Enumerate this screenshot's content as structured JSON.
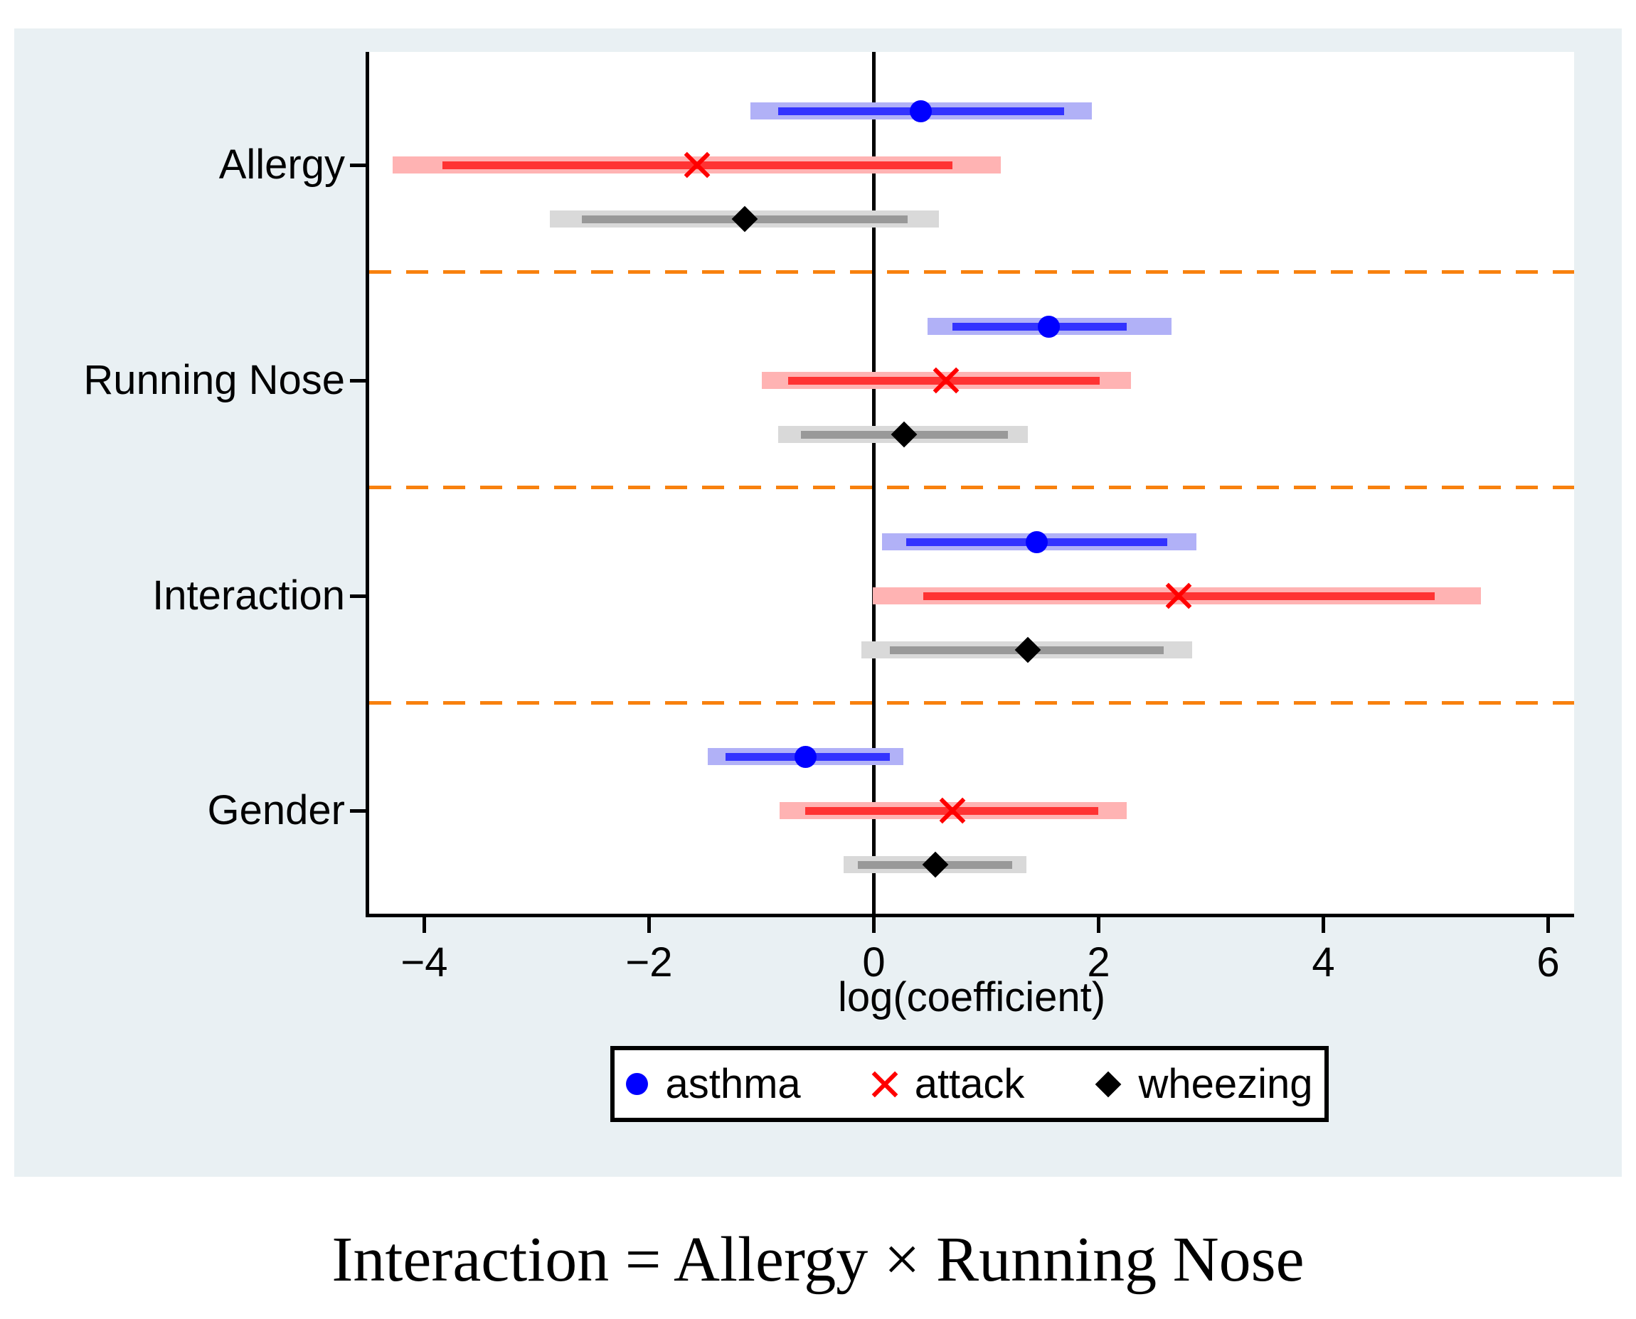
{
  "caption": "Interaction = Allergy × Running Nose",
  "chart_data": {
    "type": "scatter",
    "subtype": "coefficient-forest-plot-with-confidence-intervals",
    "title": "",
    "xlabel": "log(coefficient)",
    "ylabel": "",
    "x_tick_labels": [
      "−4",
      "−2",
      "0",
      "2",
      "4",
      "6"
    ],
    "x_tick_values": [
      -4,
      -2,
      0,
      2,
      4,
      6
    ],
    "xlim": [
      -4.5,
      6.23
    ],
    "grid": false,
    "zero_reference_line": 0,
    "category_separators": "dashed-orange-between-groups",
    "legend_position": "bottom-center",
    "categories": [
      "Allergy",
      "Running Nose",
      "Interaction",
      "Gender"
    ],
    "series": [
      {
        "name": "asthma",
        "marker": "circle",
        "points": [
          0.42,
          1.56,
          1.45,
          -0.61
        ],
        "ci_inner": [
          [
            -0.85,
            1.69
          ],
          [
            0.7,
            2.25
          ],
          [
            0.29,
            2.61
          ],
          [
            -1.32,
            0.14
          ]
        ],
        "ci_outer": [
          [
            -1.1,
            1.94
          ],
          [
            0.48,
            2.65
          ],
          [
            0.07,
            2.87
          ],
          [
            -1.48,
            0.26
          ]
        ]
      },
      {
        "name": "attack",
        "marker": "x",
        "points": [
          -1.57,
          0.64,
          2.71,
          0.7
        ],
        "ci_inner": [
          [
            -3.84,
            0.7
          ],
          [
            -0.76,
            2.01
          ],
          [
            0.44,
            4.99
          ],
          [
            -0.61,
            2.0
          ]
        ],
        "ci_outer": [
          [
            -4.28,
            1.13
          ],
          [
            -1.0,
            2.29
          ],
          [
            -0.01,
            5.4
          ],
          [
            -0.84,
            2.25
          ]
        ]
      },
      {
        "name": "wheezing",
        "marker": "diamond",
        "points": [
          -1.15,
          0.27,
          1.37,
          0.55
        ],
        "ci_inner": [
          [
            -2.6,
            0.3
          ],
          [
            -0.65,
            1.19
          ],
          [
            0.14,
            2.58
          ],
          [
            -0.14,
            1.23
          ]
        ],
        "ci_outer": [
          [
            -2.88,
            0.58
          ],
          [
            -0.85,
            1.37
          ],
          [
            -0.11,
            2.83
          ],
          [
            -0.27,
            1.36
          ]
        ]
      }
    ]
  },
  "colors": {
    "background_panel": "#e9f0f3",
    "plot_background": "#ffffff",
    "axis": "#000000",
    "text": "#000000",
    "separator": "#f8810e",
    "series": {
      "asthma": {
        "ci_outer": "#b1b1f7",
        "ci_inner": "#3333ff",
        "marker": "#0000ff"
      },
      "attack": {
        "ci_outer": "#ffb3b3",
        "ci_inner": "#ff3333",
        "marker": "#ff0000"
      },
      "wheezing": {
        "ci_outer": "#d9d9d9",
        "ci_inner": "#999999",
        "marker": "#000000"
      }
    }
  },
  "legend": {
    "items": [
      "asthma",
      "attack",
      "wheezing"
    ]
  }
}
